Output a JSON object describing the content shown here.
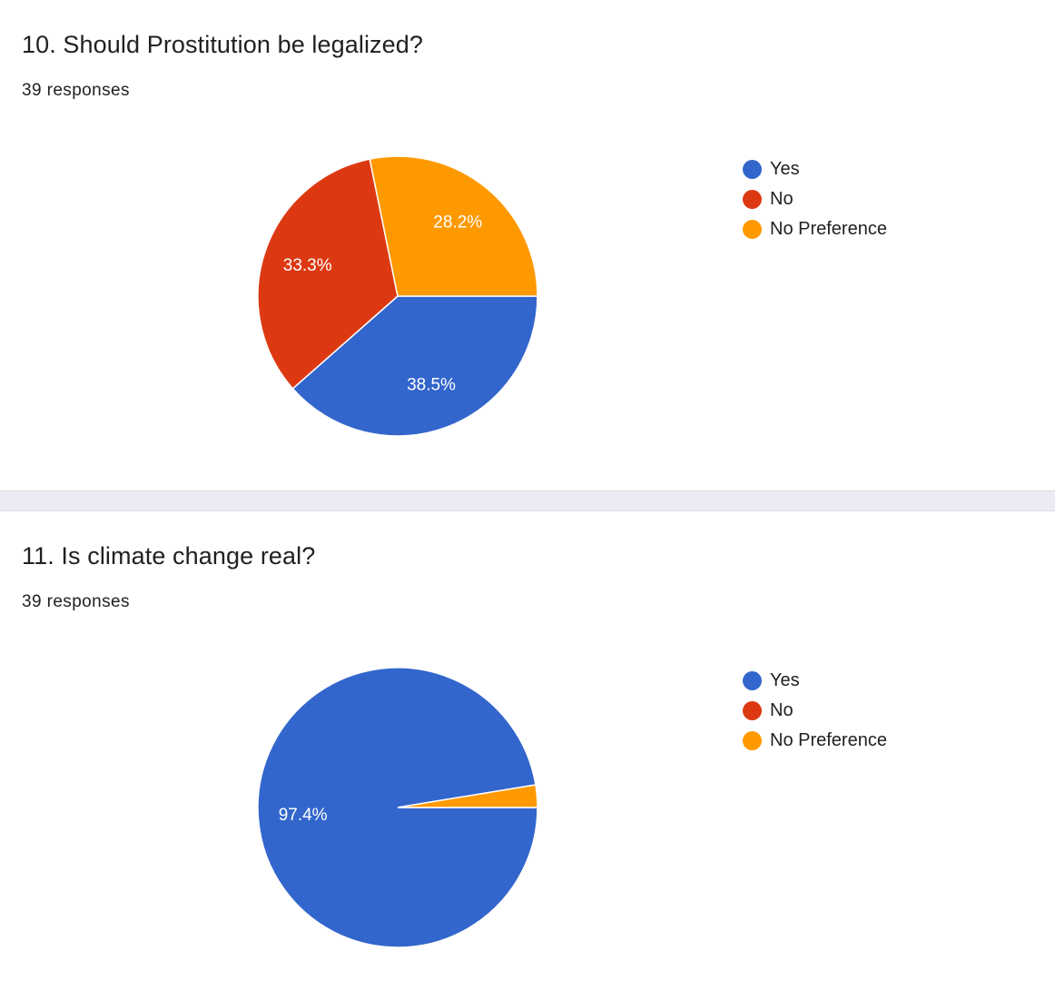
{
  "colors": {
    "yes": "#3366cc",
    "no": "#dc3912",
    "no_preference": "#ff9900"
  },
  "questions": [
    {
      "title": "10. Should Prostitution be legalized?",
      "responses": "39 responses"
    },
    {
      "title": "11. Is climate change real?",
      "responses": "39 responses"
    }
  ],
  "chart_data": [
    {
      "type": "pie",
      "title": "10. Should Prostitution be legalized?",
      "categories": [
        "Yes",
        "No",
        "No Preference"
      ],
      "values": [
        38.5,
        33.3,
        28.2
      ],
      "value_labels": [
        "38.5%",
        "33.3%",
        "28.2%"
      ],
      "colors": [
        "#3366cc",
        "#dc3912",
        "#ff9900"
      ],
      "legend": "right"
    },
    {
      "type": "pie",
      "title": "11. Is climate change real?",
      "categories": [
        "Yes",
        "No",
        "No Preference"
      ],
      "values": [
        97.4,
        0,
        2.6
      ],
      "value_labels": [
        "97.4%",
        "",
        ""
      ],
      "colors": [
        "#3366cc",
        "#dc3912",
        "#ff9900"
      ],
      "legend": "right"
    }
  ]
}
